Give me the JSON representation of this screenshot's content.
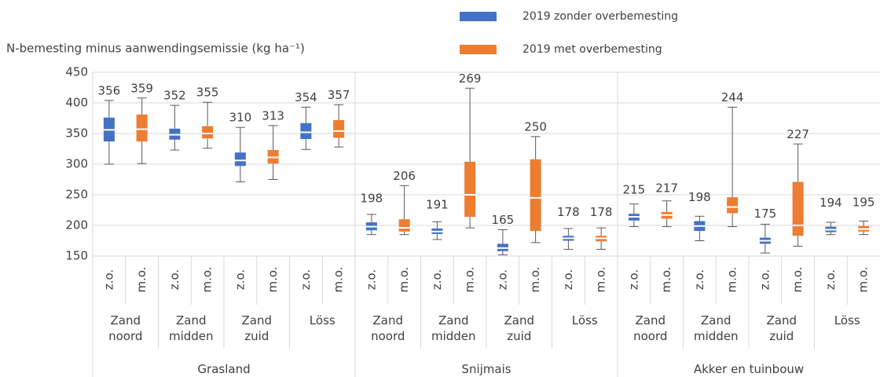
{
  "chart_data": {
    "type": "box",
    "y_label": "N-bemesting minus aanwendingsemissie (kg ha⁻¹)",
    "ylim": [
      150,
      450
    ],
    "yticks": [
      150,
      200,
      250,
      300,
      350,
      400,
      450
    ],
    "grid": true,
    "groups": [
      {
        "name": "Grasland",
        "categories": [
          "Zand noord",
          "Zand midden",
          "Zand zuid",
          "Löss"
        ]
      },
      {
        "name": "Snijmais",
        "categories": [
          "Zand noord",
          "Zand midden",
          "Zand zuid",
          "Löss"
        ]
      },
      {
        "name": "Akker en tuinbouw",
        "categories": [
          "Zand noord",
          "Zand midden",
          "Zand zuid",
          "Löss"
        ]
      }
    ],
    "series": [
      {
        "name": "2019 zonder overbemesting",
        "short": "z.o.",
        "color": "#4472c4",
        "boxes": [
          {
            "min": 300,
            "q1": 337,
            "median": 356,
            "q3": 376,
            "max": 404,
            "mean": 356
          },
          {
            "min": 323,
            "q1": 340,
            "median": 348,
            "q3": 358,
            "max": 396,
            "mean": 352
          },
          {
            "min": 271,
            "q1": 297,
            "median": 306,
            "q3": 319,
            "max": 360,
            "mean": 310
          },
          {
            "min": 324,
            "q1": 341,
            "median": 352,
            "q3": 367,
            "max": 393,
            "mean": 354
          },
          {
            "min": 185,
            "q1": 192,
            "median": 198,
            "q3": 205,
            "max": 218,
            "mean": 198
          },
          {
            "min": 177,
            "q1": 186,
            "median": 190,
            "q3": 195,
            "max": 206,
            "mean": 191
          },
          {
            "min": 152,
            "q1": 158,
            "median": 163,
            "q3": 170,
            "max": 193,
            "mean": 165
          },
          {
            "min": 161,
            "q1": 175,
            "median": 179,
            "q3": 183,
            "max": 195,
            "mean": 178
          },
          {
            "min": 198,
            "q1": 208,
            "median": 214,
            "q3": 219,
            "max": 235,
            "mean": 215
          },
          {
            "min": 175,
            "q1": 191,
            "median": 199,
            "q3": 207,
            "max": 215,
            "mean": 198
          },
          {
            "min": 155,
            "q1": 170,
            "median": 175,
            "q3": 180,
            "max": 202,
            "mean": 175
          },
          {
            "min": 185,
            "q1": 189,
            "median": 193,
            "q3": 198,
            "max": 205,
            "mean": 194
          }
        ]
      },
      {
        "name": "2019 met overbemesting",
        "short": "m.o.",
        "color": "#ed7d31",
        "boxes": [
          {
            "min": 301,
            "q1": 337,
            "median": 357,
            "q3": 381,
            "max": 408,
            "mean": 359
          },
          {
            "min": 326,
            "q1": 342,
            "median": 350,
            "q3": 362,
            "max": 401,
            "mean": 355
          },
          {
            "min": 275,
            "q1": 301,
            "median": 311,
            "q3": 323,
            "max": 363,
            "mean": 313
          },
          {
            "min": 328,
            "q1": 343,
            "median": 354,
            "q3": 372,
            "max": 397,
            "mean": 357
          },
          {
            "min": 185,
            "q1": 190,
            "median": 196,
            "q3": 210,
            "max": 265,
            "mean": 206
          },
          {
            "min": 196,
            "q1": 214,
            "median": 250,
            "q3": 304,
            "max": 424,
            "mean": 269
          },
          {
            "min": 172,
            "q1": 191,
            "median": 245,
            "q3": 308,
            "max": 345,
            "mean": 250
          },
          {
            "min": 161,
            "q1": 174,
            "median": 179,
            "q3": 183,
            "max": 196,
            "mean": 178
          },
          {
            "min": 198,
            "q1": 211,
            "median": 217,
            "q3": 222,
            "max": 240,
            "mean": 217
          },
          {
            "min": 198,
            "q1": 220,
            "median": 230,
            "q3": 246,
            "max": 393,
            "mean": 244
          },
          {
            "min": 166,
            "q1": 183,
            "median": 200,
            "q3": 271,
            "max": 333,
            "mean": 227
          },
          {
            "min": 185,
            "q1": 190,
            "median": 194,
            "q3": 199,
            "max": 207,
            "mean": 195
          }
        ]
      }
    ]
  }
}
